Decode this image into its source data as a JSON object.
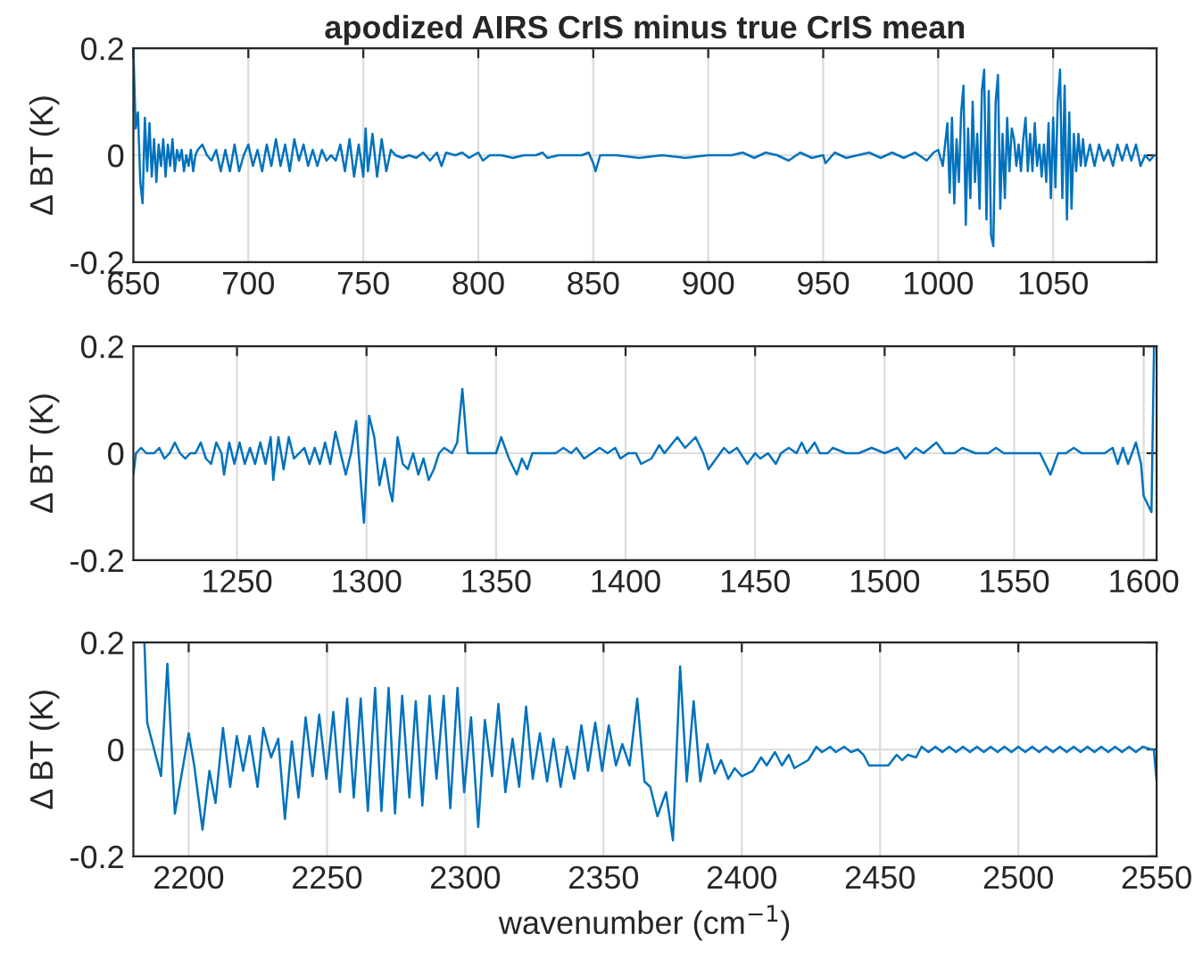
{
  "chart_data": [
    {
      "type": "line",
      "title": "apodized AIRS CrIS minus true CrIS mean",
      "ylabel": "Δ BT (K)",
      "xlim": [
        650,
        1095
      ],
      "xticks": [
        650,
        700,
        750,
        800,
        850,
        900,
        950,
        1000,
        1050
      ],
      "ylim": [
        -0.2,
        0.2
      ],
      "yticks": [
        -0.2,
        0,
        0.2
      ],
      "grid": true,
      "legend": false,
      "series": [
        {
          "color": "#0072bd",
          "x": [
            650,
            651,
            652,
            653,
            654,
            655,
            656,
            657,
            658,
            659,
            660,
            661,
            662,
            663,
            664,
            665,
            666,
            667,
            668,
            669,
            670,
            671,
            672,
            673,
            674,
            675,
            676,
            677,
            678,
            680,
            682,
            684,
            686,
            688,
            690,
            692,
            694,
            696,
            698,
            700,
            702,
            704,
            706,
            708,
            710,
            712,
            714,
            716,
            718,
            720,
            722,
            724,
            726,
            728,
            730,
            732,
            734,
            736,
            738,
            740,
            742,
            744,
            746,
            748,
            750,
            751,
            752,
            754,
            756,
            758,
            760,
            762,
            764,
            767,
            770,
            773,
            776,
            779,
            782,
            784,
            786,
            790,
            793,
            796,
            800,
            802,
            805,
            810,
            815,
            820,
            825,
            828,
            830,
            835,
            840,
            845,
            848,
            850,
            851,
            853,
            860,
            870,
            880,
            890,
            900,
            910,
            915,
            920,
            925,
            930,
            935,
            940,
            945,
            950,
            951,
            955,
            960,
            965,
            970,
            975,
            980,
            985,
            990,
            995,
            998,
            1000,
            1002,
            1003,
            1004,
            1005,
            1006,
            1007,
            1008,
            1009,
            1010,
            1011,
            1012,
            1013,
            1014,
            1015,
            1016,
            1017,
            1018,
            1019,
            1020,
            1021,
            1022,
            1023,
            1024,
            1025,
            1026,
            1027,
            1028,
            1029,
            1030,
            1031,
            1032,
            1033,
            1034,
            1035,
            1036,
            1037,
            1038,
            1039,
            1040,
            1041,
            1042,
            1043,
            1044,
            1045,
            1046,
            1047,
            1048,
            1049,
            1050,
            1051,
            1052,
            1053,
            1054,
            1055,
            1056,
            1057,
            1058,
            1059,
            1060,
            1061,
            1062,
            1063,
            1064,
            1066,
            1068,
            1070,
            1072,
            1074,
            1076,
            1078,
            1080,
            1082,
            1084,
            1086,
            1088,
            1090,
            1092,
            1094,
            1095
          ],
          "values": [
            0.2,
            0.05,
            0.08,
            -0.05,
            -0.09,
            0.07,
            -0.03,
            0.06,
            -0.04,
            0.03,
            -0.05,
            0.02,
            -0.02,
            0.03,
            -0.04,
            0.02,
            -0.02,
            0.03,
            -0.03,
            0.01,
            -0.01,
            0.01,
            -0.03,
            0.0,
            -0.02,
            0.01,
            -0.03,
            0.0,
            0.01,
            0.02,
            0.0,
            -0.01,
            0.01,
            -0.03,
            0.01,
            -0.03,
            0.02,
            -0.03,
            0.0,
            0.02,
            -0.02,
            0.01,
            -0.03,
            0.02,
            -0.02,
            0.03,
            -0.02,
            0.02,
            -0.03,
            0.03,
            -0.01,
            0.02,
            -0.02,
            0.01,
            -0.02,
            0.01,
            -0.01,
            0.0,
            -0.01,
            0.02,
            -0.03,
            0.03,
            -0.04,
            0.02,
            -0.04,
            0.05,
            -0.03,
            0.04,
            -0.04,
            0.03,
            -0.03,
            0.01,
            0.0,
            -0.005,
            0.0,
            -0.005,
            0.005,
            -0.01,
            0.005,
            -0.02,
            0.005,
            0.0,
            0.005,
            -0.005,
            0.005,
            -0.01,
            0.0,
            0.0,
            -0.005,
            0.0,
            0.0,
            0.005,
            -0.005,
            0.0,
            0.0,
            0.0,
            0.005,
            -0.015,
            -0.03,
            0.0,
            0.0,
            -0.005,
            0.0,
            -0.005,
            0.0,
            0.0,
            0.005,
            -0.005,
            0.005,
            0.0,
            -0.01,
            0.005,
            -0.005,
            0.0,
            -0.015,
            0.005,
            -0.005,
            0.0,
            0.005,
            -0.005,
            0.005,
            -0.005,
            0.005,
            -0.01,
            0.005,
            0.01,
            -0.02,
            0.02,
            0.06,
            -0.07,
            0.07,
            -0.09,
            0.03,
            -0.05,
            0.08,
            0.13,
            -0.13,
            0.05,
            -0.08,
            0.1,
            -0.05,
            0.04,
            -0.1,
            0.12,
            0.16,
            -0.12,
            0.12,
            -0.15,
            -0.17,
            0.1,
            0.15,
            -0.1,
            0.04,
            -0.08,
            0.07,
            -0.03,
            0.05,
            0.03,
            -0.02,
            0.02,
            -0.03,
            0.03,
            0.07,
            -0.03,
            0.04,
            -0.03,
            0.06,
            -0.02,
            0.02,
            -0.04,
            0.02,
            -0.05,
            0.06,
            -0.08,
            0.07,
            -0.06,
            0.1,
            0.16,
            -0.08,
            0.13,
            -0.12,
            0.08,
            -0.1,
            0.04,
            -0.03,
            0.04,
            -0.02,
            0.03,
            -0.02,
            0.02,
            -0.02,
            0.02,
            -0.01,
            0.01,
            -0.02,
            0.02,
            -0.01,
            0.02,
            -0.01,
            0.02,
            -0.02,
            0.0,
            -0.01,
            0.0,
            0.0
          ]
        }
      ]
    },
    {
      "type": "line",
      "ylabel": "Δ BT (K)",
      "xlim": [
        1210,
        1605
      ],
      "xticks": [
        1250,
        1300,
        1350,
        1400,
        1450,
        1500,
        1550,
        1600
      ],
      "ylim": [
        -0.2,
        0.2
      ],
      "yticks": [
        -0.2,
        0,
        0.2
      ],
      "grid": true,
      "legend": false,
      "series": [
        {
          "color": "#0072bd",
          "x": [
            1210,
            1211,
            1213,
            1215,
            1218,
            1220,
            1222,
            1224,
            1226,
            1228,
            1230,
            1232,
            1234,
            1236,
            1238,
            1240,
            1242,
            1244,
            1245,
            1247,
            1249,
            1251,
            1253,
            1255,
            1257,
            1259,
            1261,
            1263,
            1264,
            1266,
            1268,
            1270,
            1272,
            1274,
            1276,
            1278,
            1280,
            1282,
            1284,
            1286,
            1288,
            1290,
            1292,
            1294,
            1296,
            1299,
            1301,
            1303,
            1305,
            1307,
            1309,
            1310,
            1312,
            1314,
            1316,
            1318,
            1320,
            1322,
            1324,
            1326,
            1328,
            1330,
            1333,
            1335,
            1337,
            1339,
            1342,
            1346,
            1350,
            1352,
            1355,
            1358,
            1360,
            1362,
            1364,
            1367,
            1370,
            1373,
            1376,
            1379,
            1381,
            1384,
            1387,
            1390,
            1393,
            1396,
            1398,
            1401,
            1404,
            1406,
            1410,
            1413,
            1415,
            1420,
            1423,
            1427,
            1430,
            1432,
            1435,
            1438,
            1440,
            1443,
            1447,
            1450,
            1452,
            1455,
            1458,
            1460,
            1463,
            1466,
            1468,
            1470,
            1473,
            1475,
            1478,
            1480,
            1485,
            1490,
            1495,
            1500,
            1505,
            1508,
            1512,
            1515,
            1520,
            1523,
            1527,
            1530,
            1535,
            1540,
            1543,
            1546,
            1550,
            1555,
            1560,
            1564,
            1567,
            1570,
            1573,
            1576,
            1580,
            1585,
            1588,
            1590,
            1592,
            1594,
            1597,
            1599,
            1600,
            1602,
            1603,
            1604
          ],
          "values": [
            -0.04,
            0.0,
            0.01,
            0.0,
            0.0,
            0.01,
            -0.01,
            0.0,
            0.02,
            0.0,
            -0.01,
            0.0,
            0.0,
            0.02,
            -0.01,
            -0.02,
            0.02,
            0.0,
            -0.04,
            0.02,
            -0.02,
            0.02,
            -0.02,
            0.01,
            -0.02,
            0.02,
            -0.02,
            0.03,
            -0.05,
            0.03,
            -0.03,
            0.03,
            -0.01,
            0.0,
            0.01,
            -0.02,
            0.01,
            -0.02,
            0.02,
            -0.02,
            0.04,
            0.0,
            -0.04,
            0.0,
            0.06,
            -0.13,
            0.07,
            0.03,
            -0.06,
            -0.01,
            -0.07,
            -0.09,
            0.03,
            -0.02,
            -0.03,
            0.0,
            -0.04,
            -0.01,
            -0.05,
            -0.03,
            0.0,
            0.01,
            0.0,
            0.02,
            0.12,
            0.0,
            0.0,
            0.0,
            0.0,
            0.03,
            -0.01,
            -0.04,
            -0.01,
            -0.03,
            0.0,
            0.0,
            0.0,
            0.0,
            0.01,
            0.0,
            0.01,
            -0.01,
            0.0,
            0.01,
            0.0,
            0.01,
            -0.01,
            0.0,
            0.0,
            -0.02,
            -0.01,
            0.015,
            0.0,
            0.03,
            0.01,
            0.03,
            0.0,
            -0.03,
            -0.01,
            0.01,
            0.0,
            0.01,
            -0.02,
            0.0,
            -0.01,
            0.0,
            -0.02,
            0.0,
            0.01,
            0.0,
            0.02,
            0.0,
            0.02,
            0.0,
            0.0,
            0.01,
            0.0,
            0.0,
            0.01,
            0.0,
            0.01,
            -0.01,
            0.01,
            0.0,
            0.02,
            0.0,
            0.0,
            0.01,
            0.0,
            0.0,
            0.01,
            0.0,
            0.0,
            0.0,
            0.0,
            -0.04,
            0.0,
            0.0,
            0.01,
            0.0,
            0.0,
            0.0,
            0.01,
            -0.02,
            0.01,
            -0.02,
            0.02,
            -0.02,
            -0.08,
            -0.1,
            -0.11,
            0.2
          ]
        }
      ]
    },
    {
      "type": "line",
      "ylabel": "Δ BT (K)",
      "xlabel": "wavenumber (cm$^{−1}$)",
      "xlim": [
        2180,
        2550
      ],
      "xticks": [
        2200,
        2250,
        2300,
        2350,
        2400,
        2450,
        2500,
        2550
      ],
      "ylim": [
        -0.2,
        0.2
      ],
      "yticks": [
        -0.2,
        0,
        0.2
      ],
      "grid": true,
      "legend": false,
      "series": [
        {
          "color": "#0072bd",
          "x": [
            2184,
            2185,
            2190,
            2192.3,
            2195,
            2200,
            2202,
            2205,
            2207.5,
            2209.7,
            2212.4,
            2215,
            2217.4,
            2219.7,
            2222,
            2224.9,
            2227,
            2229.8,
            2232.4,
            2234.8,
            2237.3,
            2239.7,
            2242.3,
            2244.8,
            2247.2,
            2249.8,
            2252.3,
            2254.7,
            2257.3,
            2259.7,
            2262.2,
            2264.8,
            2267.4,
            2269.7,
            2272.3,
            2274.6,
            2277.2,
            2279.8,
            2282.1,
            2284.5,
            2287.1,
            2289.6,
            2292.2,
            2294.6,
            2297.2,
            2299.6,
            2302.1,
            2304.7,
            2307.1,
            2309.7,
            2312,
            2314.5,
            2317.1,
            2319.5,
            2322,
            2324.4,
            2327,
            2329.6,
            2331.9,
            2334.5,
            2336.8,
            2339.4,
            2342,
            2344.4,
            2347,
            2349.5,
            2351.9,
            2354.5,
            2356.8,
            2359.4,
            2362.2,
            2364.8,
            2366.9,
            2369.5,
            2372.6,
            2375.1,
            2377.7,
            2380.1,
            2382.6,
            2385,
            2387.6,
            2390.2,
            2392.5,
            2395.1,
            2397.4,
            2400,
            2404,
            2407,
            2409,
            2412,
            2414.5,
            2417,
            2419,
            2424,
            2427,
            2429,
            2432,
            2434,
            2437,
            2439.5,
            2442,
            2444,
            2446,
            2450,
            2453,
            2456,
            2458,
            2460,
            2463,
            2465,
            2467.5,
            2470,
            2472.5,
            2475,
            2477.5,
            2480,
            2482.5,
            2485,
            2487.5,
            2490,
            2492.5,
            2495,
            2497.5,
            2500,
            2502.5,
            2505,
            2507.5,
            2510,
            2512.5,
            2515,
            2517.5,
            2520,
            2522.5,
            2525,
            2527.5,
            2530,
            2532.5,
            2535,
            2537.5,
            2540,
            2542.5,
            2545,
            2548,
            2549,
            2550
          ],
          "values": [
            0.2,
            0.05,
            -0.05,
            0.16,
            -0.12,
            0.03,
            -0.03,
            -0.15,
            -0.04,
            -0.1,
            0.04,
            -0.07,
            0.025,
            -0.04,
            0.025,
            -0.07,
            0.04,
            -0.015,
            0.02,
            -0.13,
            0.015,
            -0.09,
            0.06,
            -0.05,
            0.065,
            -0.055,
            0.07,
            -0.08,
            0.095,
            -0.09,
            0.095,
            -0.115,
            0.115,
            -0.115,
            0.115,
            -0.12,
            0.1,
            -0.09,
            0.09,
            -0.105,
            0.1,
            -0.055,
            0.1,
            -0.11,
            0.115,
            -0.08,
            0.06,
            -0.145,
            0.055,
            -0.05,
            0.085,
            -0.08,
            0.02,
            -0.07,
            0.08,
            -0.055,
            0.03,
            -0.06,
            0.02,
            -0.07,
            0.005,
            -0.055,
            0.045,
            -0.04,
            0.05,
            -0.04,
            0.045,
            -0.03,
            0.01,
            -0.03,
            0.095,
            -0.06,
            -0.07,
            -0.125,
            -0.08,
            -0.17,
            0.155,
            -0.06,
            0.09,
            -0.06,
            0.01,
            -0.045,
            -0.02,
            -0.055,
            -0.035,
            -0.05,
            -0.04,
            -0.015,
            -0.03,
            -0.005,
            -0.03,
            -0.01,
            -0.035,
            -0.02,
            0.005,
            -0.005,
            0.005,
            -0.005,
            0.005,
            -0.005,
            0.0,
            -0.01,
            -0.03,
            -0.03,
            -0.03,
            -0.01,
            -0.02,
            -0.01,
            -0.015,
            0.005,
            -0.005,
            0.005,
            -0.005,
            0.005,
            -0.005,
            0.005,
            -0.005,
            0.005,
            -0.005,
            0.005,
            -0.005,
            0.005,
            -0.005,
            0.005,
            -0.005,
            0.005,
            -0.005,
            0.005,
            -0.005,
            0.005,
            -0.005,
            0.005,
            -0.005,
            0.005,
            -0.005,
            0.005,
            -0.005,
            0.005,
            -0.005,
            0.005,
            -0.005,
            0.005,
            0.0,
            0.0,
            -0.06
          ]
        }
      ]
    }
  ]
}
